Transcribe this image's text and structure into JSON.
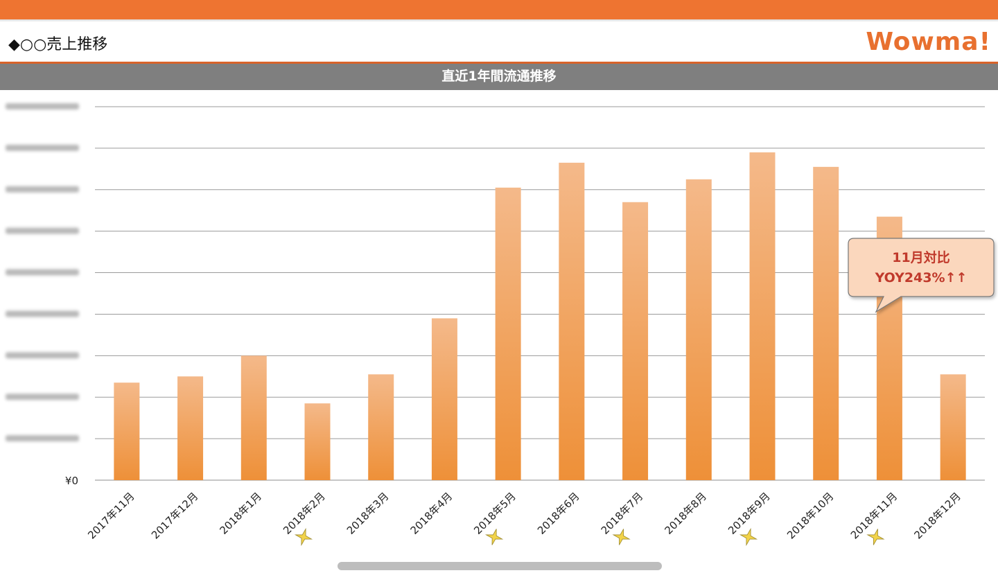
{
  "slide": {
    "title": "◆○○売上推移",
    "logo_text": "Wowma!"
  },
  "chart_header": "直近1年間流通推移",
  "callout": {
    "line1": "11月対比",
    "line2": "YOY243%↑↑"
  },
  "colors": {
    "top_bar": "#ee7431",
    "header_bg": "#7f7f7f",
    "bar_top": "#f4b98a",
    "bar_bottom": "#ee9038",
    "callout_bg": "#fbd7bd",
    "callout_text": "#c0392b",
    "star": "#f2d34a"
  },
  "chart_data": {
    "type": "bar",
    "title": "直近1年間流通推移",
    "categories": [
      "2017年11月",
      "2017年12月",
      "2018年1月",
      "2018年2月",
      "2018年3月",
      "2018年4月",
      "2018年5月",
      "2018年6月",
      "2018年7月",
      "2018年8月",
      "2018年9月",
      "2018年10月",
      "2018年11月",
      "2018年12月"
    ],
    "values": [
      4.7,
      5.0,
      6.0,
      3.7,
      5.1,
      7.8,
      14.1,
      15.3,
      13.4,
      14.5,
      15.8,
      15.1,
      12.7,
      5.1
    ],
    "ylim": [
      0,
      18
    ],
    "y_ticks_count": 10,
    "y_zero_label": "¥0",
    "y_tick_labels_blurred": true,
    "grid": true,
    "starred_categories": [
      "2018年2月",
      "2018年5月",
      "2018年7月",
      "2018年9月",
      "2018年11月"
    ]
  }
}
